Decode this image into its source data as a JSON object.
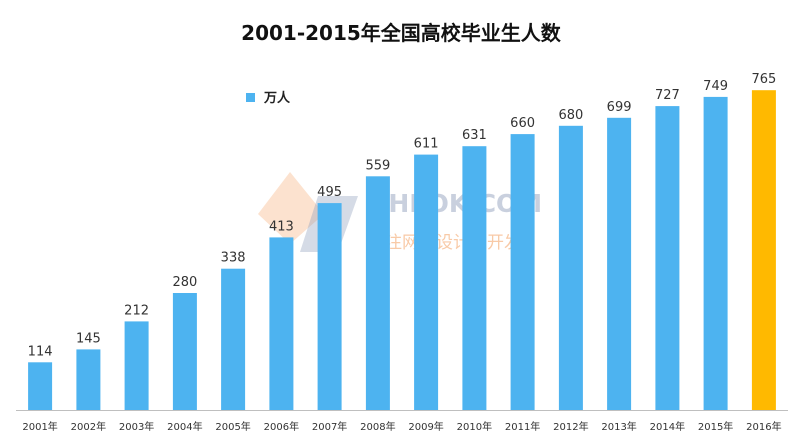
{
  "chart_data": {
    "type": "bar",
    "title": "2001-2015年全国高校毕业生人数",
    "legend": {
      "label": "万人",
      "position": "top-left"
    },
    "categories": [
      "2001年",
      "2002年",
      "2003年",
      "2004年",
      "2005年",
      "2006年",
      "2007年",
      "2008年",
      "2009年",
      "2010年",
      "2011年",
      "2012年",
      "2013年",
      "2014年",
      "2015年",
      "2016年"
    ],
    "series": [
      {
        "name": "万人",
        "values": [
          114,
          145,
          212,
          280,
          338,
          413,
          495,
          559,
          611,
          631,
          660,
          680,
          699,
          727,
          749,
          765
        ]
      }
    ],
    "highlight_index": 15,
    "colors": {
      "bar": "#4db3f0",
      "highlight": "#ffb900",
      "axis": "#bfbfbf"
    },
    "ylim": [
      0,
      800
    ],
    "grid": false
  },
  "watermark": {
    "main": "PHPOK.COM",
    "sub": "专注网站设计与开发"
  }
}
